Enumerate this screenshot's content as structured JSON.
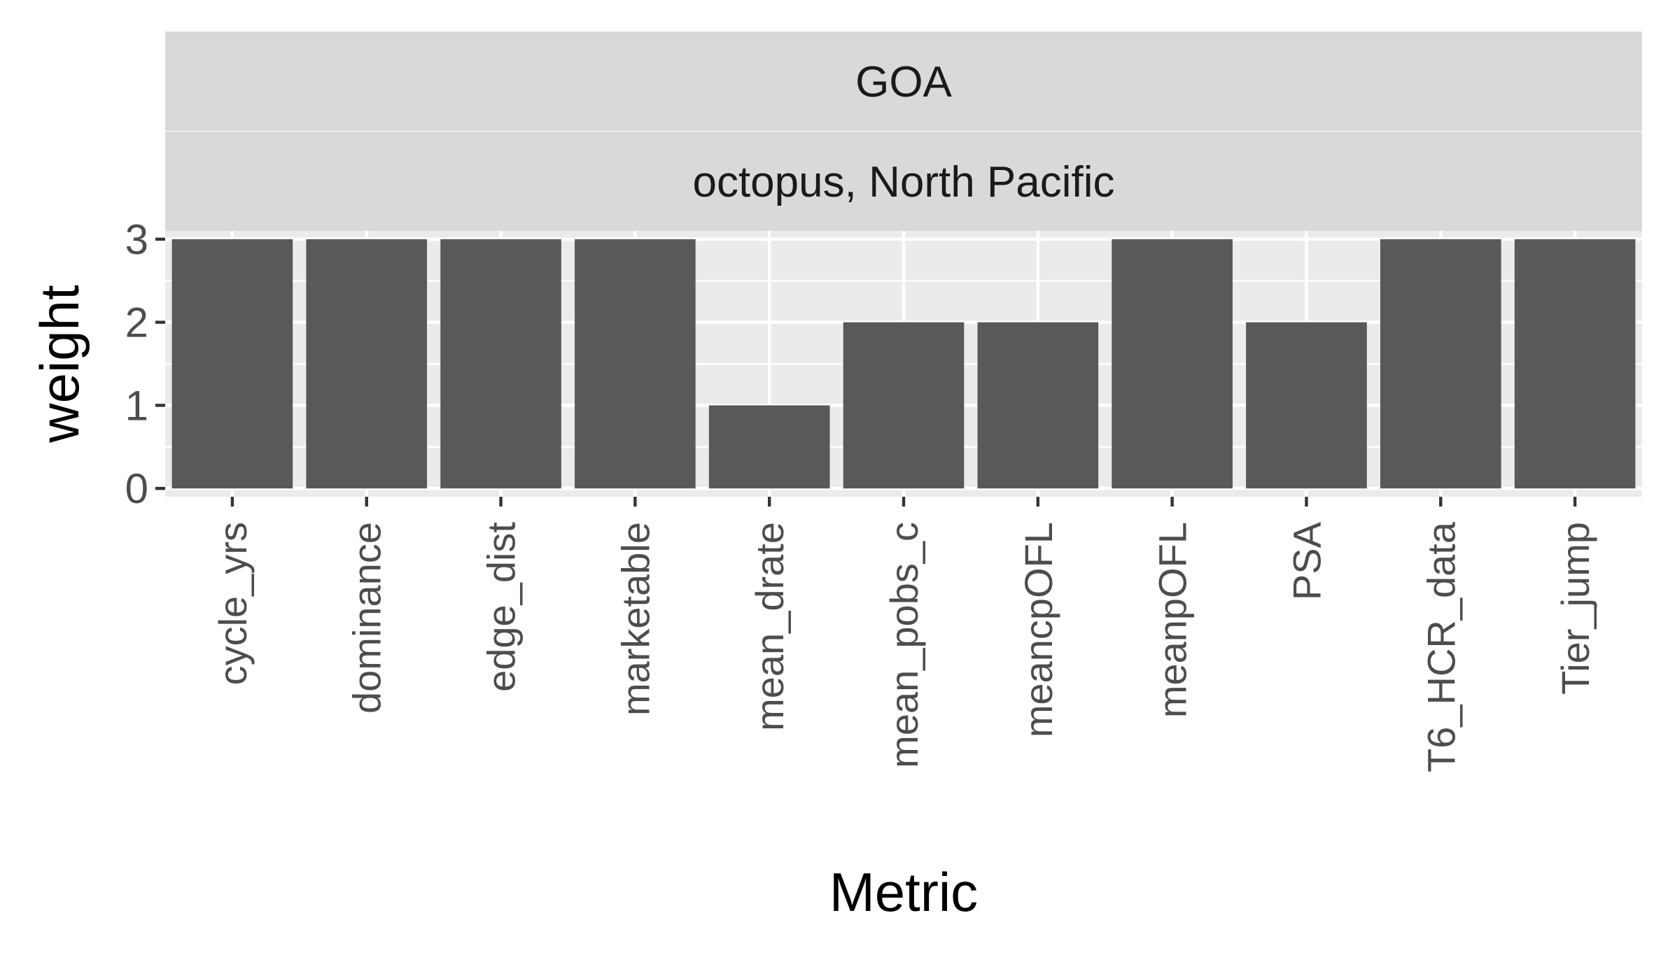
{
  "chart_data": {
    "type": "bar",
    "facet_strips": [
      "GOA",
      "octopus, North Pacific"
    ],
    "categories": [
      "cycle_yrs",
      "dominance",
      "edge_dist",
      "marketable",
      "mean_drate",
      "mean_pobs_c",
      "meancpOFL",
      "meanpOFL",
      "PSA",
      "T6_HCR_data",
      "Tier_jump"
    ],
    "values": [
      3,
      3,
      3,
      3,
      1,
      2,
      2,
      3,
      2,
      3,
      3
    ],
    "xlabel": "Metric",
    "ylabel": "weight",
    "ylim": [
      -0.1,
      3.1
    ],
    "yticks": [
      0,
      1,
      2,
      3
    ],
    "grid": true,
    "colors": {
      "panel_bg": "#EBEBEB",
      "strip_bg": "#D9D9D9",
      "bar": "#595959",
      "grid": "#FFFFFF",
      "tick": "#333333",
      "tick_label": "#4D4D4D",
      "strip_text": "#1A1A1A",
      "axis_title": "#000000"
    }
  }
}
